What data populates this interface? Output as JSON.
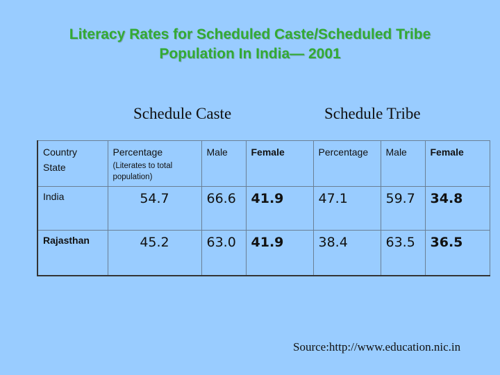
{
  "title": {
    "line1": "Literacy Rates for Scheduled Caste/Scheduled Tribe",
    "line2": "Population In India— 2001"
  },
  "groups": {
    "schedule_caste": "Schedule Caste",
    "schedule_tribe": "Schedule Tribe"
  },
  "table": {
    "headers": {
      "country": "Country",
      "state": "State",
      "sc_percentage": "Percentage",
      "sc_percentage_note": "(Literates to total population)",
      "sc_male": "Male",
      "sc_female": "Female",
      "st_percentage": "Percentage",
      "st_male": "Male",
      "st_female": "Female"
    },
    "rows": [
      {
        "state": "India",
        "sc_percentage": "54.7",
        "sc_male": "66.6",
        "sc_female": "41.9",
        "st_percentage": "47.1",
        "st_male": "59.7",
        "st_female": "34.8"
      },
      {
        "state": "Rajasthan",
        "sc_percentage": "45.2",
        "sc_male": "63.0",
        "sc_female": "41.9",
        "st_percentage": "38.4",
        "st_male": "63.5",
        "st_female": "36.5"
      }
    ]
  },
  "source": "Source:http://www.education.nic.in"
}
